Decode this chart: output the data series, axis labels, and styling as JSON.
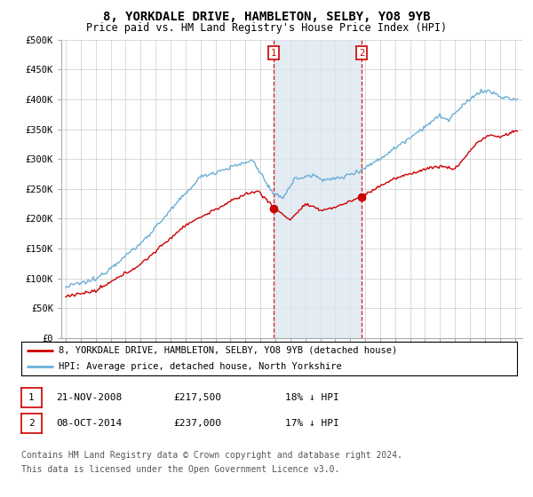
{
  "title": "8, YORKDALE DRIVE, HAMBLETON, SELBY, YO8 9YB",
  "subtitle": "Price paid vs. HM Land Registry's House Price Index (HPI)",
  "ylim": [
    0,
    500000
  ],
  "yticks": [
    0,
    50000,
    100000,
    150000,
    200000,
    250000,
    300000,
    350000,
    400000,
    450000,
    500000
  ],
  "ytick_labels": [
    "£0",
    "£50K",
    "£100K",
    "£150K",
    "£200K",
    "£250K",
    "£300K",
    "£350K",
    "£400K",
    "£450K",
    "£500K"
  ],
  "xlim_start": 1994.7,
  "xlim_end": 2025.5,
  "transaction1_date": 2008.896,
  "transaction1_price": 217500,
  "transaction2_date": 2014.767,
  "transaction2_price": 237000,
  "hpi_color": "#6baed6",
  "price_color": "#cc0000",
  "shade_color": "#dce6f1",
  "legend_line1": "8, YORKDALE DRIVE, HAMBLETON, SELBY, YO8 9YB (detached house)",
  "legend_line2": "HPI: Average price, detached house, North Yorkshire",
  "table_row1": [
    "1",
    "21-NOV-2008",
    "£217,500",
    "18% ↓ HPI"
  ],
  "table_row2": [
    "2",
    "08-OCT-2014",
    "£237,000",
    "17% ↓ HPI"
  ],
  "footnote1": "Contains HM Land Registry data © Crown copyright and database right 2024.",
  "footnote2": "This data is licensed under the Open Government Licence v3.0.",
  "bg_color": "#ffffff",
  "grid_color": "#cccccc"
}
